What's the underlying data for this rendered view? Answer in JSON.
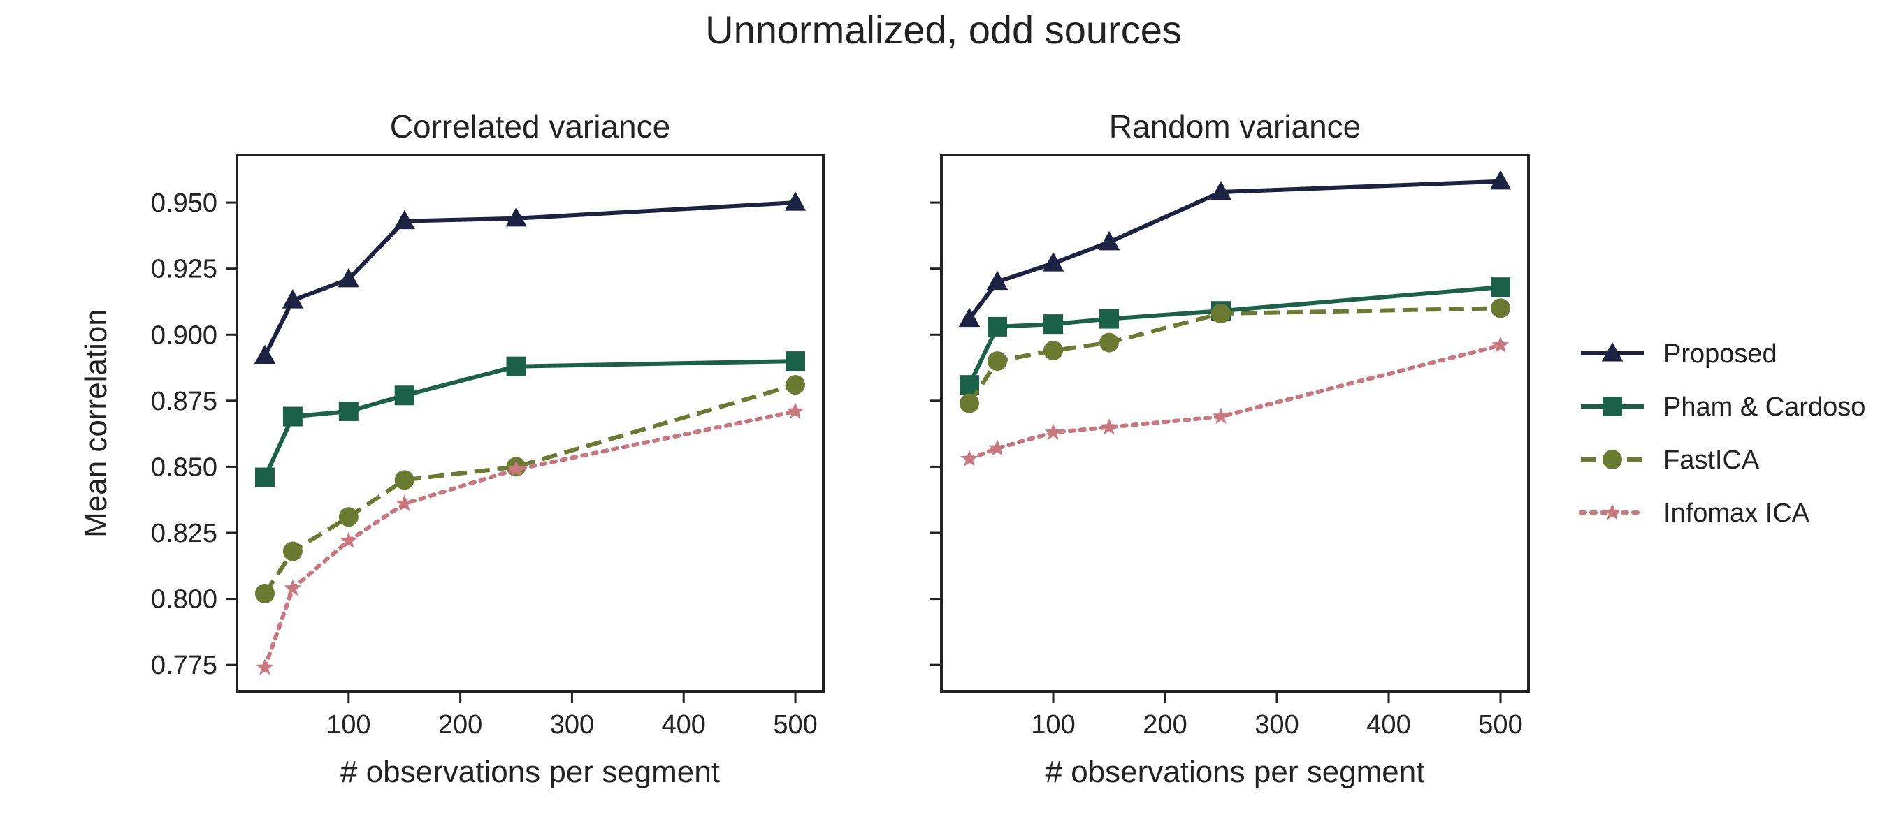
{
  "figure": {
    "suptitle": "Unnormalized, odd sources"
  },
  "chart_data": [
    {
      "type": "line",
      "title": "Correlated variance",
      "xlabel": "# observations per segment",
      "ylabel": "Mean correlation",
      "xlim": [
        0,
        525
      ],
      "ylim": [
        0.765,
        0.968
      ],
      "xticks": [
        100,
        200,
        300,
        400,
        500
      ],
      "yticks": [
        0.775,
        0.8,
        0.825,
        0.85,
        0.875,
        0.9,
        0.925,
        0.95
      ],
      "ytick_labels": [
        "0.775",
        "0.800",
        "0.825",
        "0.850",
        "0.875",
        "0.900",
        "0.925",
        "0.950"
      ],
      "grid": false,
      "x": [
        25,
        50,
        100,
        150,
        250,
        500
      ],
      "series": [
        {
          "name": "Proposed",
          "color": "#1c2242",
          "marker": "triangle",
          "dash": "solid",
          "values": [
            0.892,
            0.913,
            0.921,
            0.943,
            0.944,
            0.95
          ]
        },
        {
          "name": "Pham & Cardoso",
          "color": "#1b6149",
          "marker": "square",
          "dash": "solid",
          "values": [
            0.846,
            0.869,
            0.871,
            0.877,
            0.888,
            0.89
          ]
        },
        {
          "name": "FastICA",
          "color": "#6b7a31",
          "marker": "circle",
          "dash": "dashed",
          "values": [
            0.802,
            0.818,
            0.831,
            0.845,
            0.85,
            0.881
          ]
        },
        {
          "name": "Infomax ICA",
          "color": "#c8787e",
          "marker": "star",
          "dash": "dotted",
          "values": [
            0.774,
            0.804,
            0.822,
            0.836,
            0.849,
            0.871
          ]
        }
      ]
    },
    {
      "type": "line",
      "title": "Random variance",
      "xlabel": "# observations per segment",
      "ylabel": "",
      "xlim": [
        0,
        525
      ],
      "ylim": [
        0.765,
        0.968
      ],
      "xticks": [
        100,
        200,
        300,
        400,
        500
      ],
      "yticks": [
        0.775,
        0.8,
        0.825,
        0.85,
        0.875,
        0.9,
        0.925,
        0.95
      ],
      "ytick_labels": [],
      "grid": false,
      "x": [
        25,
        50,
        100,
        150,
        250,
        500
      ],
      "series": [
        {
          "name": "Proposed",
          "color": "#1c2242",
          "marker": "triangle",
          "dash": "solid",
          "values": [
            0.906,
            0.92,
            0.927,
            0.935,
            0.954,
            0.958
          ]
        },
        {
          "name": "Pham & Cardoso",
          "color": "#1b6149",
          "marker": "square",
          "dash": "solid",
          "values": [
            0.881,
            0.903,
            0.904,
            0.906,
            0.909,
            0.918
          ]
        },
        {
          "name": "FastICA",
          "color": "#6b7a31",
          "marker": "circle",
          "dash": "dashed",
          "values": [
            0.874,
            0.89,
            0.894,
            0.897,
            0.908,
            0.91
          ]
        },
        {
          "name": "Infomax ICA",
          "color": "#c8787e",
          "marker": "star",
          "dash": "dotted",
          "values": [
            0.853,
            0.857,
            0.863,
            0.865,
            0.869,
            0.896
          ]
        }
      ]
    }
  ],
  "legend": {
    "placement": "right",
    "entries": [
      "Proposed",
      "Pham & Cardoso",
      "FastICA",
      "Infomax ICA"
    ]
  }
}
